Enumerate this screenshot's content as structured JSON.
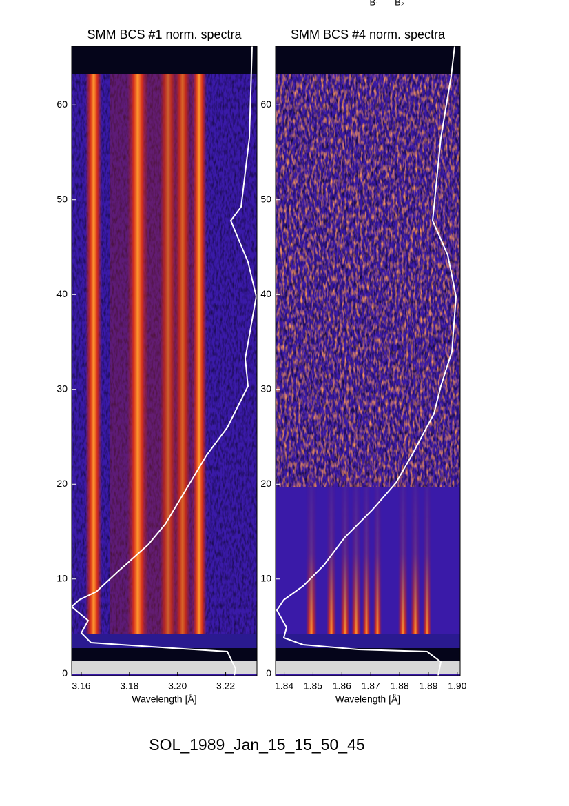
{
  "annotations": [
    "B₁",
    "B₂"
  ],
  "footer": "SOL_1989_Jan_15_15_50_45",
  "chart_data": [
    {
      "type": "heatmap",
      "title": "SMM BCS #1 norm. spectra",
      "xlabel": "Wavelength [Å]",
      "xlim": [
        3.156,
        3.233
      ],
      "xticks": [
        3.16,
        3.18,
        {
          "value": 3.2,
          "label": "3.20"
        },
        3.22
      ],
      "ylim": [
        -0.2,
        66.2
      ],
      "yticks": [
        0,
        10,
        20,
        30,
        40,
        50,
        60
      ]
    },
    {
      "type": "heatmap",
      "title": "SMM BCS #4 norm. spectra",
      "xlabel": "Wavelength [Å]",
      "xlim": [
        1.837,
        1.901
      ],
      "xticks": [
        1.84,
        1.85,
        1.86,
        1.87,
        1.88,
        1.89,
        {
          "value": 1.9,
          "label": "1.90"
        }
      ],
      "ylim": [
        -0.2,
        66.2
      ],
      "yticks": [
        0,
        10,
        20,
        30,
        40,
        50,
        60
      ]
    }
  ]
}
